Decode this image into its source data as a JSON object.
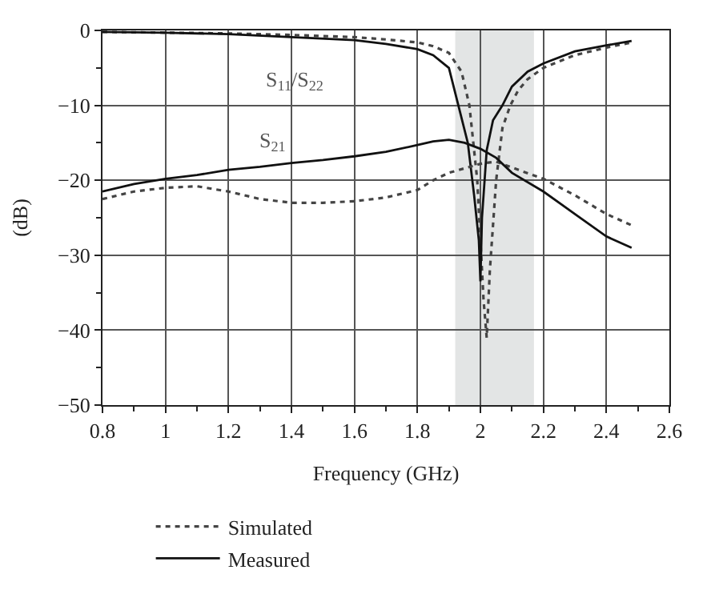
{
  "chart_data": {
    "type": "line",
    "xlabel": "Frequency (GHz)",
    "ylabel": "(dB)",
    "xlim": [
      0.8,
      2.6
    ],
    "ylim": [
      -50,
      0
    ],
    "xticks": [
      0.8,
      {
        "value": 0.9,
        "label": null
      },
      1,
      {
        "value": 1.1,
        "label": null
      },
      1.2,
      {
        "value": 1.3,
        "label": null
      },
      1.4,
      {
        "value": 1.5,
        "label": null
      },
      1.6,
      {
        "value": 1.7,
        "label": null
      },
      1.8,
      {
        "value": 1.9,
        "label": null
      },
      2,
      {
        "value": 2.1,
        "label": null
      },
      2.2,
      {
        "value": 2.3,
        "label": null
      },
      2.4,
      {
        "value": 2.5,
        "label": null
      },
      2.6
    ],
    "yticks": [
      -50,
      {
        "value": -45,
        "label": null
      },
      -40,
      {
        "value": -35,
        "label": null
      },
      -30,
      {
        "value": -25,
        "label": null
      },
      -20,
      {
        "value": -15,
        "label": null
      },
      -10,
      {
        "value": -5,
        "label": null
      },
      0
    ],
    "grid": true,
    "legend": "bottom",
    "marker": "none",
    "bands": [
      {
        "axis": "x",
        "from": 1.92,
        "to": 2.17,
        "color": "#e3e5e5"
      }
    ],
    "annotations": [
      "S$_{11}$/S$_{22}$",
      "S$_{21}$"
    ],
    "series": [
      {
        "name": "Simulated",
        "color": "#444444",
        "line_style": "dotted",
        "x": [
          0.8,
          1.0,
          1.2,
          1.4,
          1.6,
          1.7,
          1.8,
          1.85,
          1.9,
          1.94,
          1.965,
          1.99,
          2.0,
          2.01,
          2.02,
          2.03,
          2.05,
          2.07,
          2.095,
          2.12,
          2.15,
          2.2,
          2.3,
          2.4,
          2.48
        ],
        "values": [
          -0.2,
          -0.3,
          -0.4,
          -0.6,
          -0.9,
          -1.2,
          -1.6,
          -2.1,
          -3,
          -5.5,
          -10,
          -20,
          -28,
          -36,
          -41,
          -32,
          -20,
          -13,
          -10,
          -8,
          -6.5,
          -5,
          -3.3,
          -2.3,
          -1.6
        ]
      },
      {
        "name": "Measured",
        "color": "#111111",
        "line_style": "solid",
        "x": [
          0.8,
          1.0,
          1.2,
          1.4,
          1.6,
          1.7,
          1.8,
          1.85,
          1.9,
          1.93,
          1.96,
          1.98,
          1.995,
          2.0,
          2.005,
          2.02,
          2.04,
          2.07,
          2.1,
          2.15,
          2.2,
          2.3,
          2.4,
          2.48
        ],
        "values": [
          -0.2,
          -0.3,
          -0.5,
          -0.9,
          -1.3,
          -1.8,
          -2.5,
          -3.3,
          -5,
          -10,
          -15,
          -22,
          -28,
          -33.5,
          -25,
          -16,
          -12,
          -10,
          -7.5,
          -5.5,
          -4.4,
          -2.8,
          -2,
          -1.4
        ]
      },
      {
        "color": "#444444",
        "line_style": "dotted",
        "x": [
          0.8,
          0.9,
          1.0,
          1.1,
          1.2,
          1.3,
          1.4,
          1.5,
          1.6,
          1.7,
          1.8,
          1.85,
          1.9,
          2.0,
          2.05,
          2.1,
          2.2,
          2.3,
          2.4,
          2.48
        ],
        "values": [
          -22.5,
          -21.5,
          -21,
          -20.8,
          -21.5,
          -22.5,
          -23,
          -23,
          -22.8,
          -22.3,
          -21.3,
          -20,
          -19,
          -17.8,
          -17.5,
          -18.3,
          -19.8,
          -22,
          -24.5,
          -26
        ]
      },
      {
        "color": "#111111",
        "line_style": "solid",
        "x": [
          0.8,
          0.9,
          1.0,
          1.1,
          1.2,
          1.3,
          1.4,
          1.5,
          1.6,
          1.7,
          1.8,
          1.85,
          1.9,
          1.95,
          2.0,
          2.05,
          2.1,
          2.2,
          2.3,
          2.4,
          2.48
        ],
        "values": [
          -21.5,
          -20.5,
          -19.8,
          -19.3,
          -18.6,
          -18.2,
          -17.7,
          -17.3,
          -16.8,
          -16.2,
          -15.3,
          -14.8,
          -14.6,
          -15,
          -15.8,
          -17,
          -19,
          -21.5,
          -24.5,
          -27.5,
          -29
        ]
      }
    ]
  }
}
